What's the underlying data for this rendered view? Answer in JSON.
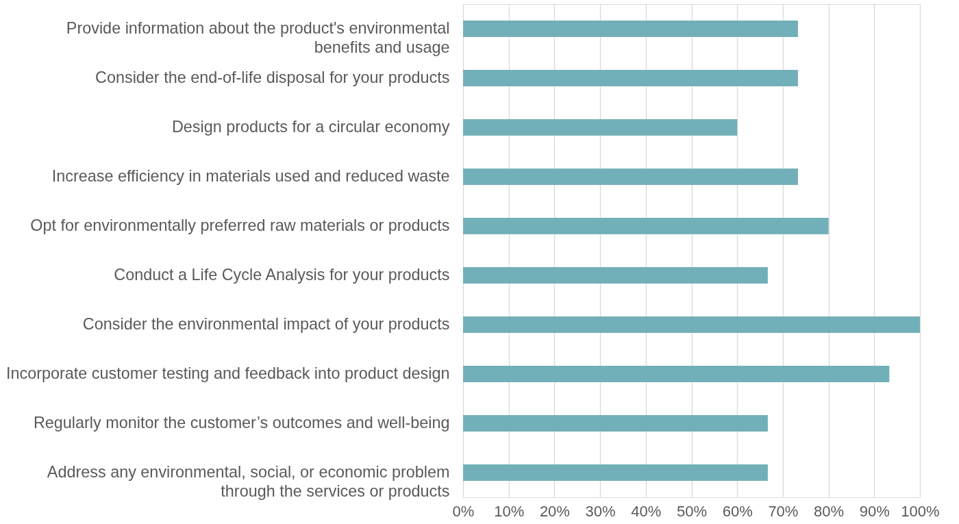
{
  "chart_data": {
    "type": "bar",
    "orientation": "horizontal",
    "categories": [
      "Provide information about the product's environmental\nbenefits and usage",
      "Consider the end-of-life disposal for your products",
      "Design products for a circular economy",
      "Increase efficiency in materials used and reduced waste",
      "Opt for environmentally preferred raw materials or products",
      "Conduct a Life Cycle Analysis for your products",
      "Consider the environmental impact of your products",
      "Incorporate customer testing and feedback into product design",
      "Regularly monitor the customer’s outcomes and well-being",
      "Address any environmental, social, or economic problem\nthrough the services or products"
    ],
    "values": [
      73.3,
      73.3,
      60,
      73.3,
      80,
      66.7,
      100,
      93.3,
      66.7,
      66.7
    ],
    "color": "#72b0b9",
    "xlim": [
      0,
      100
    ],
    "xticks": [
      {
        "value": 0,
        "label": "0%"
      },
      {
        "value": 10,
        "label": "10%"
      },
      {
        "value": 20,
        "label": "20%"
      },
      {
        "value": 30,
        "label": "30%"
      },
      {
        "value": 40,
        "label": "40%"
      },
      {
        "value": 50,
        "label": "50%"
      },
      {
        "value": 60,
        "label": "60%"
      },
      {
        "value": 70,
        "label": "70%"
      },
      {
        "value": 80,
        "label": "80%"
      },
      {
        "value": 90,
        "label": "90%"
      },
      {
        "value": 100,
        "label": "100%"
      }
    ],
    "grid": "x"
  }
}
